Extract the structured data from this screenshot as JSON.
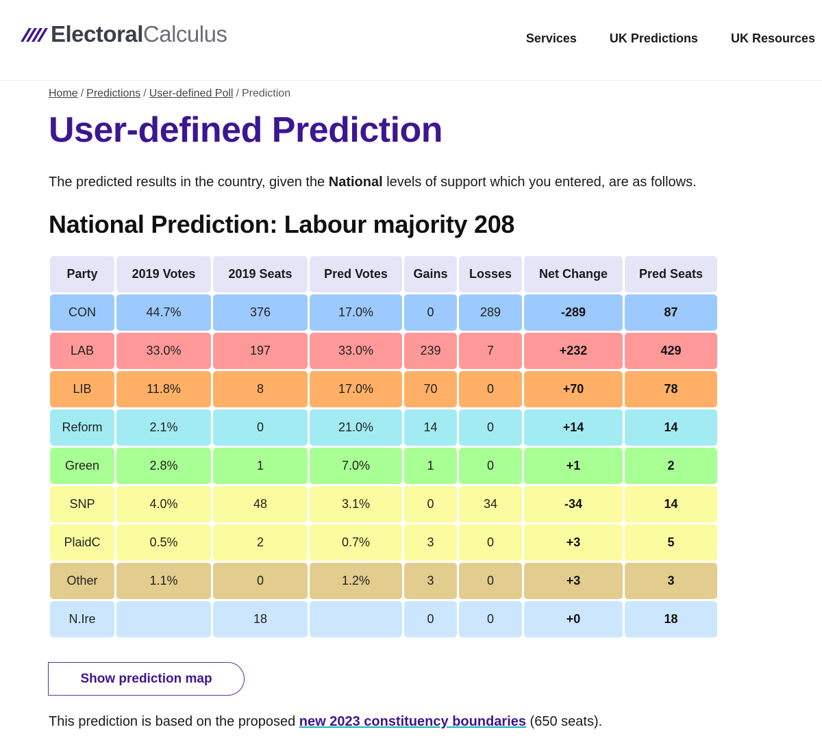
{
  "header": {
    "logo_bold": "Electoral",
    "logo_light": "Calculus",
    "nav": [
      "Services",
      "UK Predictions",
      "UK Resources"
    ]
  },
  "breadcrumb": {
    "home": "Home",
    "predictions": "Predictions",
    "user_poll": "User-defined Poll",
    "current": "Prediction",
    "sep": "/"
  },
  "page_title": "User-defined Prediction",
  "intro": {
    "before": "The predicted results in the country, given the ",
    "bold": "National",
    "after": " levels of support which you entered, are as follows."
  },
  "section_title": "National Prediction: Labour majority 208",
  "table": {
    "headers": [
      "Party",
      "2019 Votes",
      "2019 Seats",
      "Pred Votes",
      "Gains",
      "Losses",
      "Net Change",
      "Pred Seats"
    ],
    "rows": [
      {
        "party": "CON",
        "color": "#9ccaff",
        "votes_2019": "44.7%",
        "seats_2019": "376",
        "pred_votes": "17.0%",
        "gains": "0",
        "losses": "289",
        "net_change": "-289",
        "pred_seats": "87"
      },
      {
        "party": "LAB",
        "color": "#ff9999",
        "votes_2019": "33.0%",
        "seats_2019": "197",
        "pred_votes": "33.0%",
        "gains": "239",
        "losses": "7",
        "net_change": "+232",
        "pred_seats": "429"
      },
      {
        "party": "LIB",
        "color": "#ffb066",
        "votes_2019": "11.8%",
        "seats_2019": "8",
        "pred_votes": "17.0%",
        "gains": "70",
        "losses": "0",
        "net_change": "+70",
        "pred_seats": "78"
      },
      {
        "party": "Reform",
        "color": "#a3ebf3",
        "votes_2019": "2.1%",
        "seats_2019": "0",
        "pred_votes": "21.0%",
        "gains": "14",
        "losses": "0",
        "net_change": "+14",
        "pred_seats": "14"
      },
      {
        "party": "Green",
        "color": "#a8ff94",
        "votes_2019": "2.8%",
        "seats_2019": "1",
        "pred_votes": "7.0%",
        "gains": "1",
        "losses": "0",
        "net_change": "+1",
        "pred_seats": "2"
      },
      {
        "party": "SNP",
        "color": "#fbfb9f",
        "votes_2019": "4.0%",
        "seats_2019": "48",
        "pred_votes": "3.1%",
        "gains": "0",
        "losses": "34",
        "net_change": "-34",
        "pred_seats": "14"
      },
      {
        "party": "PlaidC",
        "color": "#fbfb9f",
        "votes_2019": "0.5%",
        "seats_2019": "2",
        "pred_votes": "0.7%",
        "gains": "3",
        "losses": "0",
        "net_change": "+3",
        "pred_seats": "5"
      },
      {
        "party": "Other",
        "color": "#e2cd8e",
        "votes_2019": "1.1%",
        "seats_2019": "0",
        "pred_votes": "1.2%",
        "gains": "3",
        "losses": "0",
        "net_change": "+3",
        "pred_seats": "3"
      },
      {
        "party": "N.Ire",
        "color": "#cce6ff",
        "votes_2019": "",
        "seats_2019": "18",
        "pred_votes": "",
        "gains": "0",
        "losses": "0",
        "net_change": "+0",
        "pred_seats": "18"
      }
    ]
  },
  "map_button": "Show prediction map",
  "footnote": {
    "before": "This prediction is based on the proposed ",
    "link": "new 2023 constituency boundaries",
    "after": " (650 seats)."
  },
  "colors": {
    "brand_purple": "#3d1691",
    "header_cell": "#e4e6f7"
  }
}
